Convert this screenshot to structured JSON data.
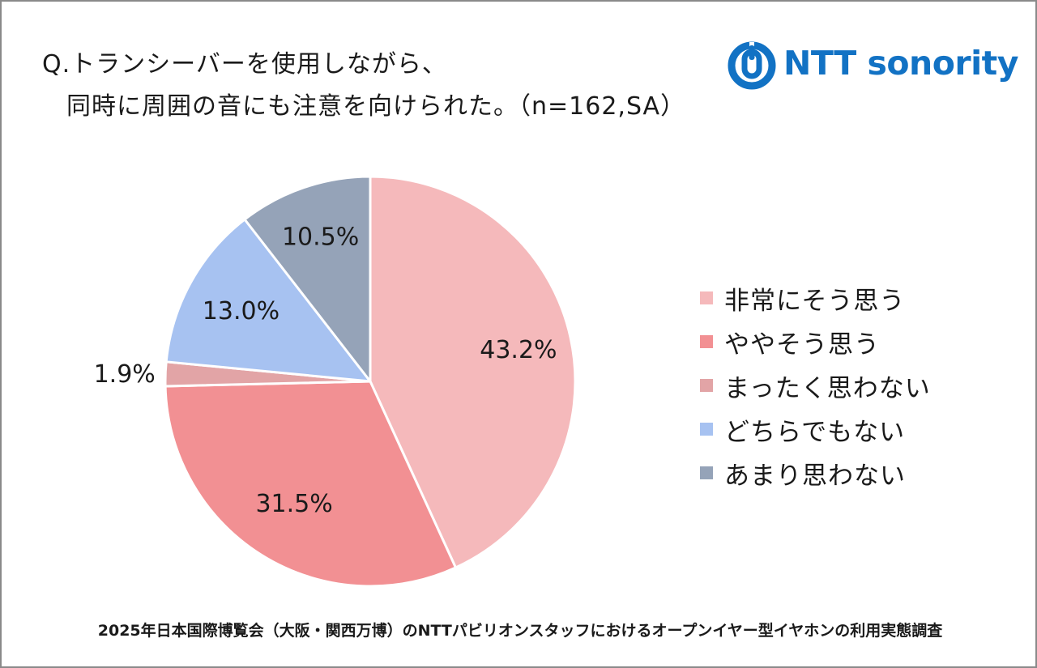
{
  "header": {
    "title_line1": "Q.トランシーバーを使用しながら、",
    "title_line2": "同時に周囲の音にも注意を向けられた。（n=162,SA）"
  },
  "logo": {
    "text": "NTT sonority",
    "icon": "ntt-logo-icon",
    "color": "#1272c4"
  },
  "chart_data": {
    "type": "pie",
    "start_angle_deg": 0,
    "direction": "clockwise",
    "slices": [
      {
        "label": "非常にそう思う",
        "value": 43.2,
        "display": "43.2%",
        "color": "#f5b9bb"
      },
      {
        "label": "ややそう思う",
        "value": 31.5,
        "display": "31.5%",
        "color": "#f29093"
      },
      {
        "label": "まったく思わない",
        "value": 1.9,
        "display": "1.9%",
        "color": "#e2a4a6"
      },
      {
        "label": "どちらでもない",
        "value": 13.0,
        "display": "13.0%",
        "color": "#a7c2f1"
      },
      {
        "label": "あまり思わない",
        "value": 10.5,
        "display": "10.5%",
        "color": "#95a3b8"
      }
    ],
    "legend": {
      "position": "right",
      "order": [
        "非常にそう思う",
        "ややそう思う",
        "まったく思わない",
        "どちらでもない",
        "あまり思わない"
      ]
    }
  },
  "footer": {
    "text": "2025年日本国際博覧会（大阪・関西万博）のNTTパビリオンスタッフにおけるオープンイヤー型イヤホンの利用実態調査"
  }
}
